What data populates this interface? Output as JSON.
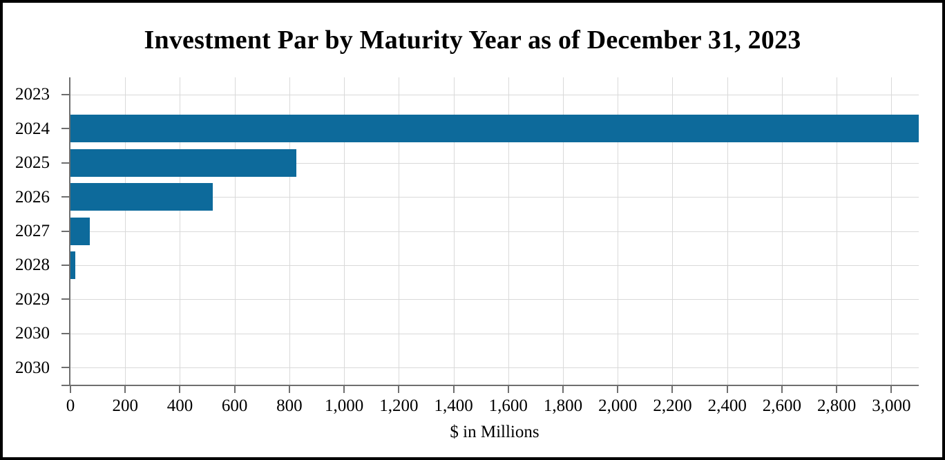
{
  "chart_data": {
    "type": "bar",
    "orientation": "horizontal",
    "title": "Investment Par by Maturity Year as of December 31, 2023",
    "xlabel": "$ in Millions",
    "ylabel": "",
    "categories": [
      "2023",
      "2024",
      "2025",
      "2026",
      "2027",
      "2028",
      "2029",
      "2030",
      "2030"
    ],
    "values": [
      0,
      3100,
      825,
      520,
      70,
      18,
      0,
      0,
      0
    ],
    "xlim": [
      0,
      3100
    ],
    "xtick_values": [
      0,
      200,
      400,
      600,
      800,
      1000,
      1200,
      1400,
      1600,
      1800,
      2000,
      2200,
      2400,
      2600,
      2800,
      3000
    ],
    "xtick_labels": [
      "0",
      "200",
      "400",
      "600",
      "800",
      "1,000",
      "1,200",
      "1,400",
      "1,600",
      "1,800",
      "2,000",
      "2,200",
      "2,400",
      "2,600",
      "2,800",
      "3,000"
    ],
    "grid": true,
    "legend": false,
    "colors": {
      "bar": "#0d6a9b",
      "axis": "#6e6e6e",
      "gridline": "#d9d9d9",
      "text": "#000000",
      "frame_border": "#000000"
    }
  }
}
